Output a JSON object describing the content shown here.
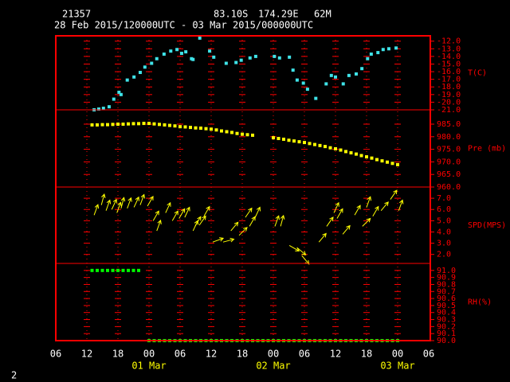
{
  "header": {
    "station": "21357",
    "lat": "83.10S",
    "lon": "174.29E",
    "elev": "62M",
    "period": "28 Feb 2015/120000UTC - 03 Mar 2015/000000UTC",
    "page": "2"
  },
  "chart_data": [
    {
      "type": "scatter",
      "ylabel": "T(C)",
      "color": "#3fe3e8",
      "x": [
        13.4,
        14.3,
        15.2,
        16.3,
        17.2,
        18.2,
        18.6,
        19.8,
        21.1,
        22.3,
        23.2,
        24.5,
        25.5,
        26.9,
        28.2,
        29.4,
        30.3,
        31.1,
        32.2,
        32.5,
        33.8,
        35.7,
        36.5,
        38.9,
        40.8,
        41.8,
        43.5,
        44.6,
        48.2,
        49.2,
        51.1,
        51.8,
        52.6,
        53.8,
        54.6,
        56.2,
        58.2,
        59.2,
        60.0,
        61.5,
        62.6,
        64.0,
        65.1,
        66.2,
        66.9,
        68.2,
        69.2,
        70.3,
        71.7
      ],
      "values": [
        -21.0,
        -20.9,
        -20.8,
        -20.6,
        -19.6,
        -18.7,
        -19.0,
        -17.1,
        -16.7,
        -16.1,
        -15.4,
        -14.9,
        -14.3,
        -13.7,
        -13.3,
        -13.1,
        -13.6,
        -13.4,
        -14.3,
        -14.4,
        -11.6,
        -13.3,
        -14.1,
        -14.9,
        -14.8,
        -14.5,
        -14.2,
        -14.0,
        -14.0,
        -14.2,
        -14.1,
        -15.8,
        -17.1,
        -17.5,
        -18.3,
        -19.5,
        -17.6,
        -16.5,
        -16.7,
        -17.6,
        -16.5,
        -16.3,
        -15.6,
        -14.3,
        -13.7,
        -13.5,
        -13.1,
        -13.0,
        -12.9
      ],
      "ylim": [
        -21,
        -11.3
      ],
      "yticks": [
        {
          "value": -21,
          "label": "-21.0"
        },
        {
          "value": -20,
          "label": "-20.0"
        },
        {
          "value": -19,
          "label": "-19.0"
        },
        {
          "value": -18,
          "label": "-18.0"
        },
        {
          "value": -17,
          "label": "-17.0"
        },
        {
          "value": -16,
          "label": "-16.0"
        },
        {
          "value": -15,
          "label": "-15.0"
        },
        {
          "value": -14,
          "label": "-14.0"
        },
        {
          "value": -13,
          "label": "-13.0"
        },
        {
          "value": -12,
          "label": "-12.0"
        }
      ]
    },
    {
      "type": "scatter",
      "ylabel": "Pre (mb)",
      "color": "#ffff00",
      "x": [
        13,
        14,
        15,
        16,
        17,
        18,
        19,
        20,
        21,
        22,
        23,
        24,
        25,
        26,
        27,
        28,
        29,
        30,
        31,
        32,
        33,
        34,
        35,
        36,
        37,
        38,
        39,
        40,
        41,
        42,
        43,
        44,
        48,
        49,
        50,
        51,
        52,
        53,
        54,
        55,
        56,
        57,
        58,
        59,
        60,
        61,
        62,
        63,
        64,
        65,
        66,
        67,
        68,
        69,
        70,
        71,
        72
      ],
      "values": [
        984.7,
        984.7,
        984.8,
        984.8,
        984.9,
        985.0,
        985.0,
        985.1,
        985.2,
        985.2,
        985.3,
        985.3,
        985.1,
        984.9,
        984.7,
        984.5,
        984.3,
        984.0,
        983.9,
        983.7,
        983.5,
        983.4,
        983.2,
        983.0,
        982.7,
        982.3,
        982.0,
        981.7,
        981.3,
        981.0,
        980.8,
        980.6,
        979.6,
        979.3,
        979.0,
        978.6,
        978.3,
        978.0,
        977.7,
        977.3,
        976.9,
        976.5,
        976.1,
        975.6,
        975.2,
        974.7,
        974.1,
        973.6,
        973.1,
        972.5,
        972.0,
        971.5,
        970.9,
        970.4,
        969.9,
        969.4,
        968.9
      ],
      "ylim": [
        960,
        990.7
      ],
      "yticks": [
        {
          "value": 960,
          "label": "960.0"
        },
        {
          "value": 965,
          "label": "965.0"
        },
        {
          "value": 970,
          "label": "970.0"
        },
        {
          "value": 975,
          "label": "975.0"
        },
        {
          "value": 980,
          "label": "980.0"
        },
        {
          "value": 985,
          "label": "985.0"
        }
      ]
    },
    {
      "type": "vector",
      "ylabel": "SPD(MPS)",
      "color": "#ffff00",
      "x": [
        13.4,
        14.8,
        15.7,
        16.8,
        17.8,
        18.6,
        19.8,
        21.1,
        22.3,
        23.7,
        24.8,
        25.5,
        27.2,
        28.5,
        29.8,
        30.9,
        32.5,
        32.9,
        33.7,
        34.6,
        36.3,
        38.3,
        39.8,
        41.4,
        42.6,
        43.4,
        44.5,
        48.3,
        49.4,
        51.1,
        52.6,
        53.5,
        56.8,
        58.3,
        59.7,
        60.3,
        61.4,
        63.7,
        65.2,
        66.0,
        67.2,
        68.8,
        70.6,
        72.2
      ],
      "values": [
        5.5,
        6.4,
        5.9,
        6.0,
        5.7,
        6.1,
        6.1,
        6.2,
        6.4,
        6.3,
        5.0,
        4.1,
        5.7,
        5.0,
        5.2,
        5.3,
        4.1,
        4.5,
        4.6,
        5.4,
        3.1,
        3.1,
        4.1,
        3.7,
        5.3,
        4.5,
        5.3,
        4.5,
        4.5,
        2.8,
        2.6,
        1.9,
        3.1,
        4.5,
        5.7,
        5.2,
        3.8,
        5.5,
        4.5,
        6.2,
        5.4,
        5.9,
        6.9,
        5.9
      ],
      "directions": [
        20,
        15,
        20,
        25,
        20,
        15,
        20,
        25,
        20,
        30,
        30,
        20,
        25,
        30,
        30,
        25,
        25,
        30,
        35,
        30,
        70,
        75,
        40,
        45,
        35,
        30,
        25,
        20,
        15,
        120,
        130,
        140,
        40,
        35,
        25,
        30,
        40,
        30,
        45,
        20,
        30,
        40,
        35,
        20
      ],
      "ylim": [
        1.2,
        8
      ],
      "yticks": [
        {
          "value": 2,
          "label": "2.0"
        },
        {
          "value": 3,
          "label": "3.0"
        },
        {
          "value": 4,
          "label": "4.0"
        },
        {
          "value": 5,
          "label": "5.0"
        },
        {
          "value": 6,
          "label": "6.0"
        },
        {
          "value": 7,
          "label": "7.0"
        }
      ]
    },
    {
      "type": "scatter",
      "ylabel": "RH(%)",
      "color": "#00ff00",
      "x": [
        13,
        14,
        15,
        16,
        17,
        18,
        19,
        20,
        21,
        22,
        24,
        25,
        26,
        27,
        28,
        29,
        30,
        31,
        32,
        33,
        34,
        35,
        36,
        37,
        38,
        39,
        40,
        41,
        42,
        43,
        44,
        45,
        46,
        47,
        48,
        49,
        50,
        51,
        52,
        53,
        54,
        55,
        56,
        57,
        58,
        59,
        60,
        61,
        62,
        63,
        64,
        65,
        66,
        67,
        68,
        69,
        70,
        71,
        72
      ],
      "values": [
        91.0,
        91.0,
        91.0,
        91.0,
        91.0,
        91.0,
        91.0,
        91.0,
        91.0,
        91.0,
        90.0,
        90.0,
        90.0,
        90.0,
        90.0,
        90.0,
        90.0,
        90.0,
        90.0,
        90.0,
        90.0,
        90.0,
        90.0,
        90.0,
        90.0,
        90.0,
        90.0,
        90.0,
        90.0,
        90.0,
        90.0,
        90.0,
        90.0,
        90.0,
        90.0,
        90.0,
        90.0,
        90.0,
        90.0,
        90.0,
        90.0,
        90.0,
        90.0,
        90.0,
        90.0,
        90.0,
        90.0,
        90.0,
        90.0,
        90.0,
        90.0,
        90.0,
        90.0,
        90.0,
        90.0,
        90.0,
        90.0,
        90.0,
        90.0
      ],
      "ylim": [
        90,
        91.1
      ],
      "yticks": [
        {
          "value": 90.0,
          "label": "90.0"
        },
        {
          "value": 90.1,
          "label": "90.1"
        },
        {
          "value": 90.2,
          "label": "90.2"
        },
        {
          "value": 90.3,
          "label": "90.3"
        },
        {
          "value": 90.4,
          "label": "90.4"
        },
        {
          "value": 90.5,
          "label": "90.5"
        },
        {
          "value": 90.6,
          "label": "90.6"
        },
        {
          "value": 90.7,
          "label": "90.7"
        },
        {
          "value": 90.8,
          "label": "90.8"
        },
        {
          "value": 90.9,
          "label": "90.9"
        },
        {
          "value": 91.0,
          "label": "91.0"
        }
      ],
      "xlim": [
        6,
        78
      ],
      "xticks": [
        {
          "value": 6,
          "label": "06"
        },
        {
          "value": 12,
          "label": "12"
        },
        {
          "value": 18,
          "label": "18"
        },
        {
          "value": 24,
          "label": "00"
        },
        {
          "value": 30,
          "label": "06"
        },
        {
          "value": 36,
          "label": "12"
        },
        {
          "value": 42,
          "label": "18"
        },
        {
          "value": 48,
          "label": "00"
        },
        {
          "value": 54,
          "label": "06"
        },
        {
          "value": 60,
          "label": "12"
        },
        {
          "value": 66,
          "label": "18"
        },
        {
          "value": 72,
          "label": "00"
        },
        {
          "value": 78,
          "label": "06"
        }
      ],
      "x_date_labels": [
        {
          "value": 24,
          "label": "01 Mar"
        },
        {
          "value": 48,
          "label": "02 Mar"
        },
        {
          "value": 72,
          "label": "03 Mar"
        }
      ]
    }
  ]
}
